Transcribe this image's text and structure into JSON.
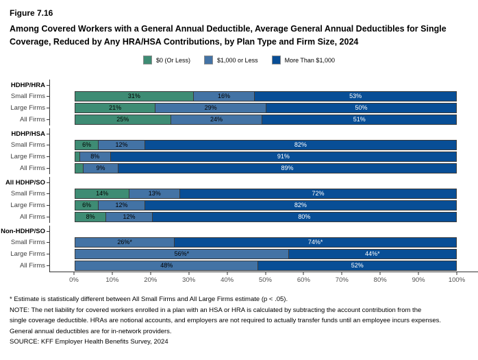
{
  "figure_number": "Figure 7.16",
  "title": "Among Covered Workers with a General Annual Deductible, Average General Annual Deductibles for Single Coverage, Reduced by Any HRA/HSA Contributions, by Plan Type and Firm Size, 2024",
  "colors": {
    "green": "#3E8C74",
    "mid_blue": "#4373A5",
    "dark_blue": "#084E96",
    "segment_border": "#3a3a3a",
    "axis": "#333333",
    "tick_label": "#4d4d4d"
  },
  "legend": {
    "items": [
      {
        "label": "$0 (Or Less)",
        "color": "#3E8C74",
        "text_color": "#000000"
      },
      {
        "label": "$1,000 or Less",
        "color": "#4373A5",
        "text_color": "#000000"
      },
      {
        "label": "More Than $1,000",
        "color": "#084E96",
        "text_color": "#ffffff"
      }
    ]
  },
  "chart_data": {
    "type": "bar",
    "stacked": true,
    "orientation": "horizontal",
    "unit": "percent",
    "xlim": [
      0,
      100
    ],
    "x_ticks": [
      "0%",
      "10%",
      "20%",
      "30%",
      "40%",
      "50%",
      "60%",
      "70%",
      "80%",
      "90%",
      "100%"
    ],
    "series_names": [
      "$0 (Or Less)",
      "$1,000 or Less",
      "More Than $1,000"
    ],
    "groups": [
      {
        "label": "HDHP/HRA",
        "rows": [
          {
            "label": "Small Firms",
            "values": [
              31,
              16,
              53
            ],
            "value_labels": [
              "31%",
              "16%",
              "53%"
            ]
          },
          {
            "label": "Large Firms",
            "values": [
              21,
              29,
              50
            ],
            "value_labels": [
              "21%",
              "29%",
              "50%"
            ]
          },
          {
            "label": "All Firms",
            "values": [
              25,
              24,
              51
            ],
            "value_labels": [
              "25%",
              "24%",
              "51%"
            ]
          }
        ]
      },
      {
        "label": "HDHP/HSA",
        "rows": [
          {
            "label": "Small Firms",
            "values": [
              6,
              12,
              82
            ],
            "value_labels": [
              "6%",
              "12%",
              "82%"
            ]
          },
          {
            "label": "Large Firms",
            "values": [
              1,
              8,
              91
            ],
            "value_labels": [
              "",
              "8%",
              "91%"
            ]
          },
          {
            "label": "All Firms",
            "values": [
              2,
              9,
              89
            ],
            "value_labels": [
              "",
              "9%",
              "89%"
            ]
          }
        ]
      },
      {
        "label": "All HDHP/SO",
        "rows": [
          {
            "label": "Small Firms",
            "values": [
              14,
              13,
              72
            ],
            "value_labels": [
              "14%",
              "13%",
              "72%"
            ]
          },
          {
            "label": "Large Firms",
            "values": [
              6,
              12,
              82
            ],
            "value_labels": [
              "6%",
              "12%",
              "82%"
            ]
          },
          {
            "label": "All Firms",
            "values": [
              8,
              12,
              80
            ],
            "value_labels": [
              "8%",
              "12%",
              "80%"
            ]
          }
        ]
      },
      {
        "label": "Non-HDHP/SO",
        "rows": [
          {
            "label": "Small Firms",
            "values": [
              0,
              26,
              74
            ],
            "value_labels": [
              "",
              "26%*",
              "74%*"
            ]
          },
          {
            "label": "Large Firms",
            "values": [
              0,
              56,
              44
            ],
            "value_labels": [
              "",
              "56%*",
              "44%*"
            ]
          },
          {
            "label": "All Firms",
            "values": [
              0,
              48,
              52
            ],
            "value_labels": [
              "",
              "48%",
              "52%"
            ]
          }
        ]
      }
    ]
  },
  "footnotes": [
    "* Estimate is statistically different between All Small Firms and All Large Firms estimate (p < .05).",
    "NOTE: The net liability for covered workers enrolled in a plan with an HSA or HRA is calculated by subtracting the account contribution from the",
    "single coverage deductible. HRAs are notional accounts, and employers are not required to actually transfer funds until an employee incurs expenses.",
    "General annual deductibles are for in-network providers.",
    "SOURCE: KFF Employer Health Benefits Survey, 2024"
  ]
}
